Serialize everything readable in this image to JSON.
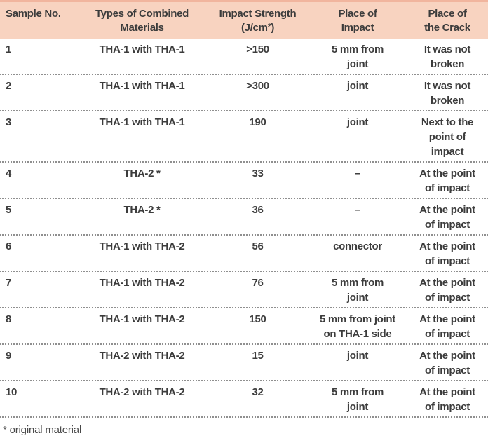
{
  "table": {
    "columns": [
      {
        "key": "sample-no",
        "label": "Sample No."
      },
      {
        "key": "materials",
        "label": "Types of Combined\nMaterials"
      },
      {
        "key": "impact-strength",
        "label": "Impact Strength\n(J/cm²)"
      },
      {
        "key": "place-of-impact",
        "label": "Place of\nImpact"
      },
      {
        "key": "place-of-crack",
        "label": "Place of\nthe Crack"
      }
    ],
    "rows": [
      {
        "cells": [
          "1",
          "THA-1 with THA-1",
          ">150",
          "5 mm from\njoint",
          "It was not\nbroken"
        ]
      },
      {
        "cells": [
          "2",
          "THA-1 with THA-1",
          ">300",
          "joint",
          "It was not\nbroken"
        ]
      },
      {
        "cells": [
          "3",
          "THA-1 with THA-1",
          "190",
          "joint",
          "Next to the\npoint of\nimpact"
        ]
      },
      {
        "cells": [
          "4",
          "THA-2 *",
          "33",
          "–",
          "At the point\nof impact"
        ]
      },
      {
        "cells": [
          "5",
          "THA-2 *",
          "36",
          "–",
          "At the point\nof impact"
        ]
      },
      {
        "cells": [
          "6",
          "THA-1 with THA-2",
          "56",
          "connector",
          "At the point\nof impact"
        ]
      },
      {
        "cells": [
          "7",
          "THA-1 with THA-2",
          "76",
          "5 mm from\njoint",
          "At the point\nof impact"
        ]
      },
      {
        "cells": [
          "8",
          "THA-1 with THA-2",
          "150",
          "5 mm from joint\non THA-1 side",
          "At the point\nof impact"
        ]
      },
      {
        "cells": [
          "9",
          "THA-2 with THA-2",
          "15",
          "joint",
          "At the point\nof impact"
        ]
      },
      {
        "cells": [
          "10",
          "THA-2 with THA-2",
          "32",
          "5 mm from\njoint",
          "At the point\nof impact"
        ]
      }
    ],
    "footnote": "* original material"
  },
  "colors": {
    "header_bg": "#f8d3c0",
    "header_edge": "#f1b59e",
    "text": "#3c3c3c",
    "separator": "#8f8f8f"
  }
}
